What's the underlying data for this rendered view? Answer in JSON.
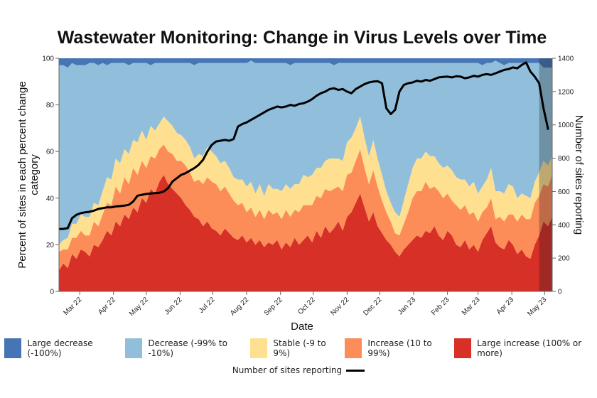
{
  "chart_data": {
    "type": "area",
    "title": "Wastewater Monitoring: Change in Virus Levels over Time",
    "xlabel": "Date",
    "ylabel": "Percent of sites in each percent change category",
    "y2label": "Number of sites reporting",
    "ylim": [
      0,
      100
    ],
    "y2lim": [
      0,
      1400
    ],
    "yticks": [
      "0",
      "20",
      "40",
      "60",
      "80",
      "100"
    ],
    "y2ticks": [
      "0",
      "200",
      "400",
      "600",
      "800",
      "1000",
      "1200",
      "1400"
    ],
    "xticks": [
      "Mar 22",
      "Apr 22",
      "May 22",
      "Jun 22",
      "Jul 22",
      "Aug 22",
      "Sep 22",
      "Oct 22",
      "Nov 22",
      "Dec 22",
      "Jan 23",
      "Feb 23",
      "Mar 23",
      "Apr 23",
      "May 23"
    ],
    "x_start": "2022-02-10",
    "x_step_days": 4,
    "shaded_from": "2023-04-26",
    "grid": false,
    "legend_position": "bottom",
    "series": [
      {
        "name": "Large increase (100% or more)",
        "color": "#d73027",
        "values": [
          9,
          12,
          10,
          16,
          14,
          18,
          17,
          15,
          20,
          19,
          22,
          26,
          24,
          30,
          28,
          33,
          31,
          36,
          34,
          40,
          38,
          44,
          42,
          47,
          50,
          46,
          44,
          42,
          40,
          37,
          35,
          32,
          31,
          28,
          30,
          27,
          26,
          24,
          27,
          25,
          23,
          22,
          24,
          21,
          23,
          20,
          22,
          19,
          21,
          20,
          22,
          18,
          21,
          19,
          23,
          20,
          22,
          24,
          21,
          26,
          23,
          28,
          25,
          27,
          30,
          26,
          32,
          34,
          38,
          42,
          36,
          30,
          34,
          28,
          25,
          22,
          20,
          17,
          15,
          18,
          20,
          22,
          24,
          23,
          26,
          25,
          28,
          24,
          22,
          26,
          24,
          20,
          19,
          22,
          18,
          20,
          17,
          22,
          25,
          28,
          21,
          19,
          18,
          22,
          20,
          16,
          18,
          15,
          14,
          20,
          24,
          30,
          28,
          32
        ]
      },
      {
        "name": "Increase (10 to 99%)",
        "color": "#fc8d59",
        "values": [
          8,
          6,
          8,
          7,
          9,
          8,
          7,
          9,
          10,
          9,
          11,
          12,
          13,
          15,
          14,
          16,
          15,
          17,
          16,
          16,
          15,
          14,
          15,
          14,
          13,
          14,
          15,
          14,
          16,
          17,
          16,
          15,
          17,
          18,
          19,
          20,
          20,
          19,
          18,
          17,
          16,
          15,
          14,
          13,
          13,
          12,
          13,
          12,
          14,
          13,
          12,
          13,
          14,
          13,
          12,
          14,
          15,
          13,
          16,
          15,
          17,
          16,
          18,
          17,
          15,
          17,
          18,
          17,
          18,
          19,
          17,
          16,
          18,
          17,
          14,
          12,
          10,
          8,
          9,
          11,
          14,
          18,
          19,
          20,
          21,
          19,
          17,
          19,
          18,
          16,
          15,
          17,
          16,
          15,
          15,
          14,
          13,
          12,
          11,
          12,
          10,
          13,
          12,
          11,
          13,
          14,
          15,
          16,
          17,
          18,
          17,
          16,
          17,
          18
        ]
      },
      {
        "name": "Stable (-9 to 9%)",
        "color": "#fee090",
        "values": [
          3,
          4,
          5,
          6,
          6,
          7,
          8,
          8,
          8,
          9,
          10,
          11,
          11,
          12,
          13,
          12,
          13,
          12,
          14,
          13,
          12,
          13,
          12,
          11,
          12,
          13,
          12,
          12,
          11,
          11,
          11,
          10,
          11,
          12,
          13,
          13,
          12,
          12,
          11,
          11,
          10,
          11,
          10,
          11,
          11,
          10,
          11,
          10,
          11,
          11,
          10,
          12,
          11,
          12,
          11,
          12,
          13,
          12,
          13,
          12,
          13,
          12,
          14,
          13,
          12,
          13,
          14,
          15,
          14,
          14,
          13,
          12,
          13,
          12,
          11,
          9,
          8,
          9,
          8,
          10,
          12,
          13,
          14,
          14,
          13,
          14,
          13,
          12,
          13,
          12,
          13,
          12,
          13,
          11,
          12,
          13,
          12,
          11,
          12,
          13,
          12,
          11,
          12,
          13,
          12,
          10,
          9,
          10,
          9,
          9,
          10,
          10,
          9,
          8
        ]
      },
      {
        "name": "Decrease (-99% to -10%)",
        "color": "#91bfdb",
        "values": [
          77,
          75,
          73,
          69,
          68,
          64,
          65,
          66,
          60,
          60,
          55,
          48,
          50,
          41,
          43,
          37,
          38,
          33,
          34,
          29,
          33,
          26,
          29,
          26,
          23,
          25,
          27,
          30,
          31,
          33,
          36,
          40,
          39,
          40,
          36,
          38,
          40,
          43,
          42,
          45,
          49,
          50,
          50,
          53,
          52,
          56,
          52,
          57,
          52,
          54,
          54,
          55,
          52,
          53,
          52,
          52,
          48,
          49,
          48,
          45,
          45,
          42,
          41,
          40,
          41,
          42,
          34,
          32,
          28,
          23,
          32,
          40,
          33,
          41,
          48,
          55,
          60,
          64,
          66,
          59,
          52,
          45,
          41,
          41,
          38,
          40,
          40,
          43,
          45,
          44,
          46,
          49,
          50,
          50,
          53,
          51,
          56,
          52,
          50,
          45,
          56,
          55,
          55,
          52,
          53,
          58,
          56,
          57,
          58,
          51,
          47,
          40,
          42,
          38
        ]
      },
      {
        "name": "Large decrease (-100%)",
        "color": "#4575b4",
        "values": [
          3,
          3,
          4,
          2,
          3,
          3,
          3,
          2,
          2,
          3,
          2,
          3,
          2,
          2,
          2,
          2,
          3,
          2,
          2,
          2,
          2,
          3,
          2,
          2,
          2,
          2,
          2,
          2,
          2,
          2,
          2,
          3,
          2,
          2,
          2,
          2,
          2,
          2,
          3,
          2,
          2,
          2,
          2,
          2,
          1,
          2,
          2,
          2,
          2,
          2,
          2,
          2,
          2,
          3,
          2,
          2,
          2,
          2,
          2,
          2,
          2,
          2,
          2,
          3,
          2,
          3,
          2,
          2,
          2,
          2,
          2,
          2,
          2,
          2,
          2,
          2,
          2,
          2,
          2,
          2,
          2,
          2,
          2,
          2,
          2,
          2,
          2,
          2,
          2,
          2,
          2,
          2,
          2,
          2,
          2,
          2,
          2,
          3,
          2,
          2,
          2,
          2,
          2,
          2,
          2,
          2,
          2,
          2,
          2,
          3,
          2,
          3,
          4,
          4
        ]
      }
    ],
    "line_series": {
      "name": "Number of sites reporting",
      "color": "#000000",
      "axis": "right",
      "values": [
        375,
        375,
        380,
        440,
        460,
        470,
        475,
        478,
        485,
        495,
        500,
        505,
        505,
        510,
        512,
        515,
        520,
        540,
        575,
        580,
        585,
        588,
        590,
        592,
        600,
        620,
        660,
        680,
        700,
        710,
        725,
        740,
        760,
        790,
        840,
        880,
        900,
        905,
        910,
        905,
        915,
        990,
        1005,
        1015,
        1030,
        1045,
        1060,
        1075,
        1090,
        1100,
        1110,
        1105,
        1110,
        1120,
        1115,
        1125,
        1130,
        1140,
        1155,
        1175,
        1190,
        1200,
        1215,
        1220,
        1210,
        1215,
        1200,
        1190,
        1215,
        1230,
        1245,
        1255,
        1260,
        1262,
        1250,
        1100,
        1065,
        1090,
        1200,
        1240,
        1250,
        1255,
        1265,
        1260,
        1270,
        1265,
        1275,
        1285,
        1288,
        1290,
        1285,
        1292,
        1290,
        1280,
        1285,
        1295,
        1290,
        1300,
        1305,
        1300,
        1310,
        1320,
        1330,
        1335,
        1345,
        1340,
        1360,
        1375,
        1320,
        1290,
        1250,
        1100,
        980,
        970
      ]
    }
  },
  "legend": {
    "items": [
      {
        "label": "Large decrease (-100%)",
        "color": "#4575b4"
      },
      {
        "label": "Decrease (-99% to -10%)",
        "color": "#91bfdb"
      },
      {
        "label": "Stable (-9 to 9%)",
        "color": "#fee090"
      },
      {
        "label": "Increase (10 to 99%)",
        "color": "#fc8d59"
      },
      {
        "label": "Large increase (100% or more)",
        "color": "#d73027"
      }
    ],
    "line_label": "Number of sites reporting"
  }
}
